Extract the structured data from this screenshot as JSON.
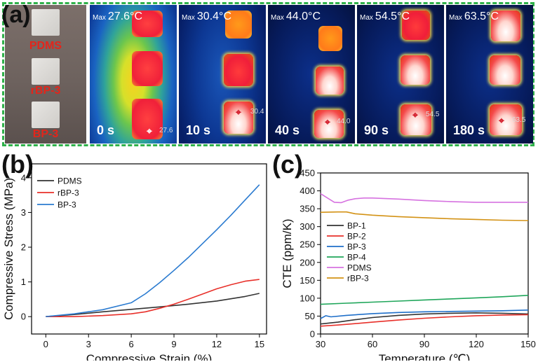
{
  "panel_a": {
    "letter": "(a)",
    "samples": [
      "PDMS",
      "rBP-3",
      "BP-3"
    ],
    "frames": [
      {
        "max_prefix": "Max",
        "max_value": "27.6°C",
        "time": "0 s",
        "spot_value": "27.6"
      },
      {
        "max_prefix": "Max",
        "max_value": "30.4°C",
        "time": "10 s",
        "spot_value": "30.4"
      },
      {
        "max_prefix": "Max",
        "max_value": "44.0°C",
        "time": "40 s",
        "spot_value": "44.0"
      },
      {
        "max_prefix": "Max",
        "max_value": "54.5°C",
        "time": "90 s",
        "spot_value": "54.5"
      },
      {
        "max_prefix": "Max",
        "max_value": "63.5°C",
        "time": "180 s",
        "spot_value": "63.5"
      }
    ],
    "frame_color": "#2fb14a"
  },
  "chart_data": [
    {
      "panel": "(b)",
      "type": "line",
      "xlabel": "Compressive Strain (%)",
      "ylabel": "Compressive Stress (MPa)",
      "xlim": [
        -1,
        15.5
      ],
      "ylim": [
        -0.5,
        4.4
      ],
      "xticks": [
        0,
        3,
        6,
        9,
        12,
        15
      ],
      "yticks": [
        0,
        1,
        2,
        3,
        4
      ],
      "legend": "top-left",
      "series": [
        {
          "name": "PDMS",
          "color": "#333333",
          "x": [
            0,
            2,
            4,
            6,
            8,
            10,
            12,
            14,
            15
          ],
          "y": [
            0,
            0.06,
            0.14,
            0.21,
            0.28,
            0.36,
            0.45,
            0.58,
            0.67
          ]
        },
        {
          "name": "rBP-3",
          "color": "#e8302a",
          "x": [
            0,
            2,
            4,
            6,
            7,
            8,
            9,
            10,
            11,
            12,
            13,
            14,
            15
          ],
          "y": [
            0,
            0,
            0.03,
            0.08,
            0.14,
            0.24,
            0.36,
            0.5,
            0.65,
            0.8,
            0.92,
            1.02,
            1.07
          ]
        },
        {
          "name": "BP-3",
          "color": "#2b7bd0",
          "x": [
            0,
            2,
            4,
            6,
            7,
            8,
            9,
            10,
            11,
            12,
            13,
            14,
            15
          ],
          "y": [
            0,
            0.08,
            0.2,
            0.4,
            0.66,
            0.98,
            1.33,
            1.7,
            2.1,
            2.5,
            2.92,
            3.36,
            3.8
          ]
        }
      ]
    },
    {
      "panel": "(c)",
      "type": "line",
      "xlabel": "Temperature (℃)",
      "ylabel": "CTE (ppm/K)",
      "xlim": [
        30,
        150
      ],
      "ylim": [
        0,
        450
      ],
      "xticks": [
        30,
        60,
        90,
        120,
        150
      ],
      "yticks": [
        0,
        50,
        100,
        150,
        200,
        250,
        300,
        350,
        400,
        450
      ],
      "legend": "middle-left",
      "series": [
        {
          "name": "BP-1",
          "color": "#333333",
          "x": [
            30,
            40,
            50,
            60,
            75,
            90,
            105,
            120,
            135,
            150
          ],
          "y": [
            28,
            33,
            40,
            46,
            52,
            56,
            58,
            59,
            58,
            56
          ]
        },
        {
          "name": "BP-2",
          "color": "#e8302a",
          "x": [
            30,
            40,
            50,
            60,
            75,
            90,
            105,
            120,
            135,
            150
          ],
          "y": [
            22,
            25,
            29,
            33,
            39,
            44,
            48,
            51,
            53,
            54
          ]
        },
        {
          "name": "BP-3",
          "color": "#1f6fc9",
          "x": [
            30,
            33,
            36,
            45,
            60,
            75,
            90,
            105,
            120,
            135,
            150
          ],
          "y": [
            43,
            51,
            48,
            52,
            57,
            60,
            62,
            63,
            64,
            65,
            67
          ]
        },
        {
          "name": "BP-4",
          "color": "#1fa65a",
          "x": [
            30,
            45,
            60,
            75,
            90,
            105,
            120,
            135,
            150
          ],
          "y": [
            83,
            86,
            89,
            92,
            95,
            98,
            101,
            104,
            108
          ]
        },
        {
          "name": "PDMS",
          "color": "#d672e0",
          "x": [
            30,
            34,
            38,
            42,
            46,
            50,
            55,
            60,
            75,
            90,
            105,
            120,
            135,
            150
          ],
          "y": [
            392,
            380,
            368,
            367,
            374,
            378,
            380,
            380,
            377,
            373,
            370,
            368,
            368,
            368
          ]
        },
        {
          "name": "rBP-3",
          "color": "#d39215",
          "x": [
            30,
            40,
            45,
            50,
            60,
            75,
            90,
            105,
            120,
            135,
            150
          ],
          "y": [
            340,
            341,
            341,
            336,
            332,
            328,
            325,
            322,
            320,
            318,
            317
          ]
        }
      ]
    }
  ]
}
